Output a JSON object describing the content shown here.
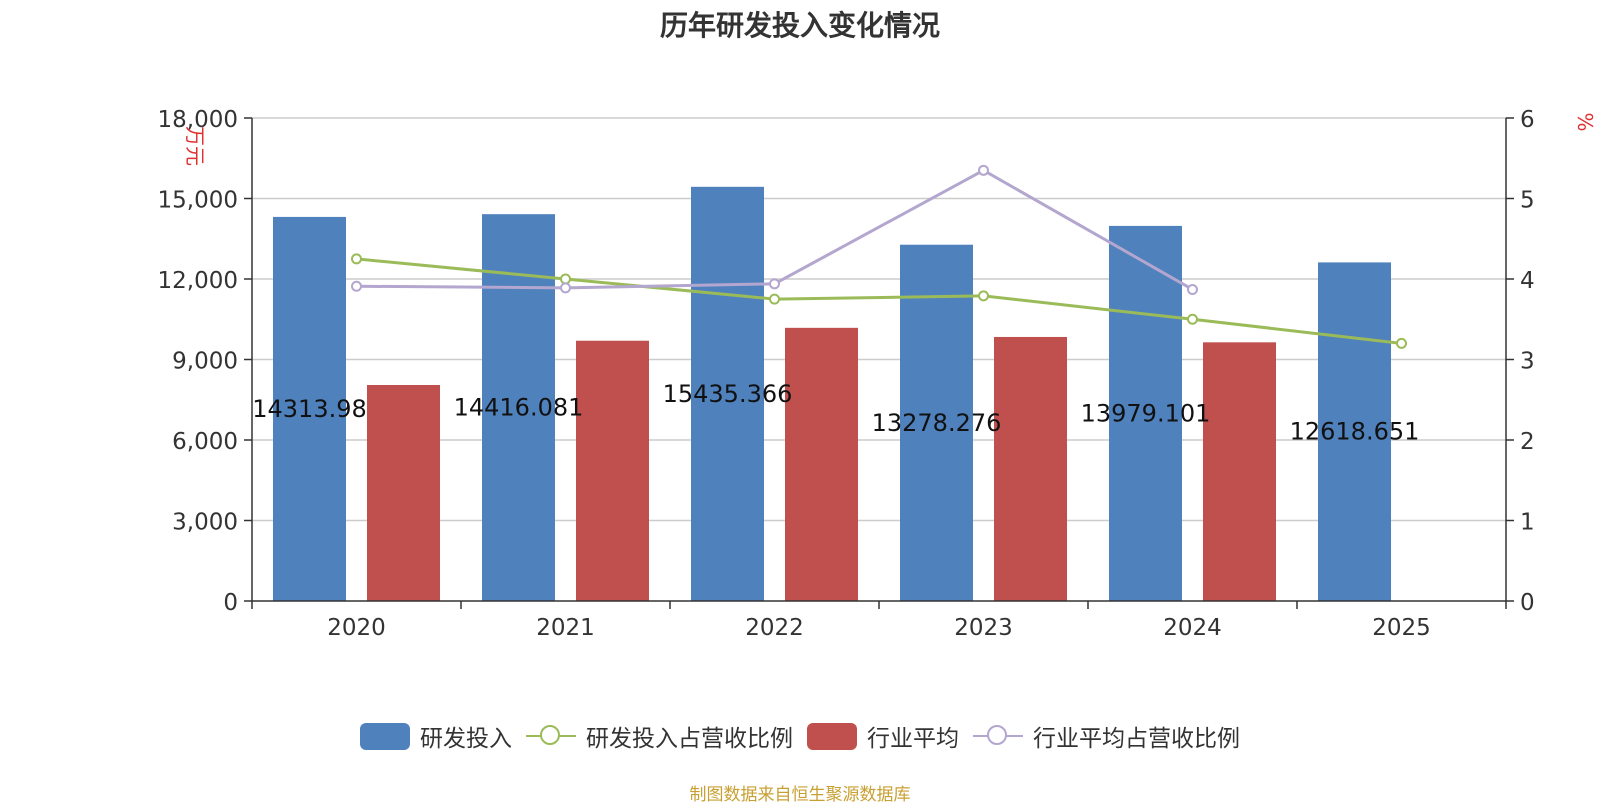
{
  "chart_data": {
    "type": "bar",
    "title": "历年研发投入变化情况",
    "categories": [
      "2020",
      "2021",
      "2022",
      "2023",
      "2024",
      "2025"
    ],
    "y_left": {
      "label": "万元",
      "ylim": [
        0,
        18000
      ],
      "ticks": [
        "0",
        "3,000",
        "6,000",
        "9,000",
        "12,000",
        "15,000",
        "18,000"
      ]
    },
    "y_right": {
      "label": "%",
      "ylim": [
        0,
        6
      ],
      "ticks": [
        "0",
        "1",
        "2",
        "3",
        "4",
        "5",
        "6"
      ]
    },
    "series": [
      {
        "name": "研发投入",
        "type": "bar",
        "axis": "left",
        "color": "#4f81bd",
        "values": [
          14313.98,
          14416.081,
          15435.366,
          13278.276,
          13979.101,
          12618.651
        ],
        "labels": [
          "14313.98",
          "14416.081",
          "15435.366",
          "13278.276",
          "13979.101",
          "12618.651"
        ]
      },
      {
        "name": "研发投入占营收比例",
        "type": "line",
        "axis": "right",
        "color": "#9bbb59",
        "values": [
          4.25,
          4.0,
          3.75,
          3.79,
          3.5,
          3.2
        ]
      },
      {
        "name": "行业平均",
        "type": "bar",
        "axis": "left",
        "color": "#c0504d",
        "values": [
          8050,
          9700,
          10180,
          9840,
          9640,
          null
        ]
      },
      {
        "name": "行业平均占营收比例",
        "type": "line",
        "axis": "right",
        "color": "#b3a6cf",
        "values": [
          3.91,
          3.89,
          3.94,
          5.35,
          3.87,
          null
        ]
      }
    ],
    "grid": true,
    "legend_position": "bottom-center"
  },
  "source_note": "制图数据来自恒生聚源数据库"
}
